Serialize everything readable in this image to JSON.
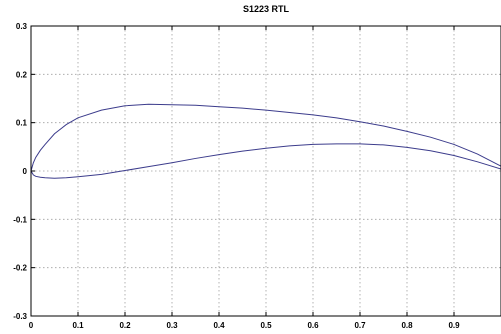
{
  "chart_data": {
    "type": "line",
    "title": "S1223 RTL",
    "xlabel": "",
    "ylabel": "",
    "xlim": [
      0,
      1
    ],
    "ylim": [
      -0.3,
      0.3
    ],
    "xticks": [
      0,
      0.1,
      0.2,
      0.3,
      0.4,
      0.5,
      0.6,
      0.7,
      0.8,
      0.9
    ],
    "xtick_labels": [
      "0",
      "0.1",
      "0.2",
      "0.3",
      "0.4",
      "0.5",
      "0.6",
      "0.7",
      "0.8",
      "0.9"
    ],
    "yticks": [
      0.3,
      0.2,
      0.1,
      0,
      -0.1,
      -0.2,
      -0.3
    ],
    "ytick_labels": [
      "0.3",
      "0.2",
      "0.1",
      "0",
      "-0.1",
      "-0.2",
      "-0.3"
    ],
    "grid": true,
    "series": [
      {
        "color": "#3c3c8c",
        "x": [
          1.0,
          0.95,
          0.9,
          0.85,
          0.8,
          0.75,
          0.7,
          0.65,
          0.6,
          0.55,
          0.5,
          0.45,
          0.4,
          0.35,
          0.3,
          0.25,
          0.2,
          0.15,
          0.1,
          0.075,
          0.05,
          0.03,
          0.02,
          0.01,
          0.005,
          0.0,
          0.005,
          0.01,
          0.02,
          0.03,
          0.05,
          0.075,
          0.1,
          0.15,
          0.2,
          0.25,
          0.3,
          0.35,
          0.4,
          0.45,
          0.5,
          0.55,
          0.6,
          0.65,
          0.7,
          0.75,
          0.8,
          0.85,
          0.9,
          0.95,
          1.0
        ],
        "y": [
          0.01,
          0.035,
          0.055,
          0.07,
          0.082,
          0.093,
          0.102,
          0.11,
          0.116,
          0.121,
          0.126,
          0.13,
          0.133,
          0.136,
          0.137,
          0.138,
          0.135,
          0.126,
          0.11,
          0.096,
          0.077,
          0.055,
          0.043,
          0.028,
          0.017,
          0.0,
          -0.008,
          -0.011,
          -0.013,
          -0.014,
          -0.015,
          -0.014,
          -0.012,
          -0.007,
          0.001,
          0.009,
          0.017,
          0.026,
          0.034,
          0.041,
          0.047,
          0.052,
          0.055,
          0.056,
          0.056,
          0.054,
          0.049,
          0.042,
          0.032,
          0.019,
          0.004
        ]
      }
    ]
  }
}
